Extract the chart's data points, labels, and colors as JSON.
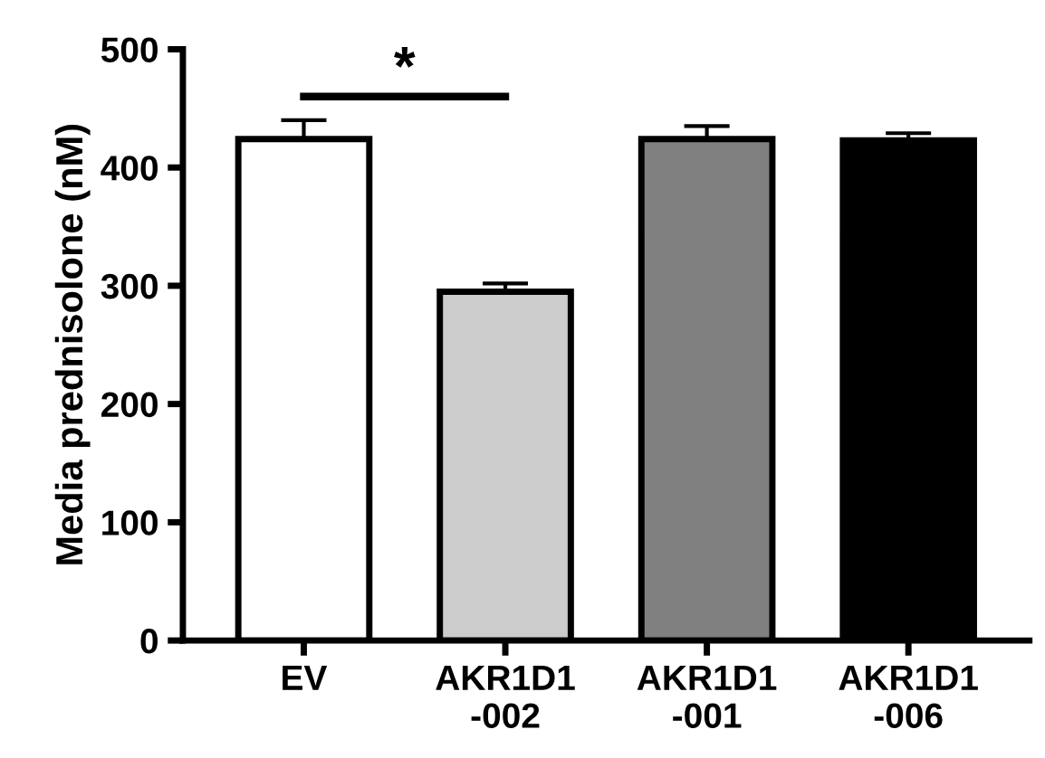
{
  "chart_data": {
    "type": "bar",
    "ylabel": "Media prednisolone (nM)",
    "categories": [
      "EV",
      "AKR1D1\n-002",
      "AKR1D1\n-001",
      "AKR1D1\n-006"
    ],
    "values": [
      424,
      295,
      424,
      423
    ],
    "errors": [
      16,
      7,
      11,
      6
    ],
    "colors": [
      "#ffffff",
      "#cccccc",
      "#808080",
      "#000000"
    ],
    "ylim": [
      0,
      500
    ],
    "yticks": [
      0,
      100,
      200,
      300,
      400,
      500
    ],
    "annotations": [
      "*"
    ],
    "grid": false,
    "legend": false
  }
}
